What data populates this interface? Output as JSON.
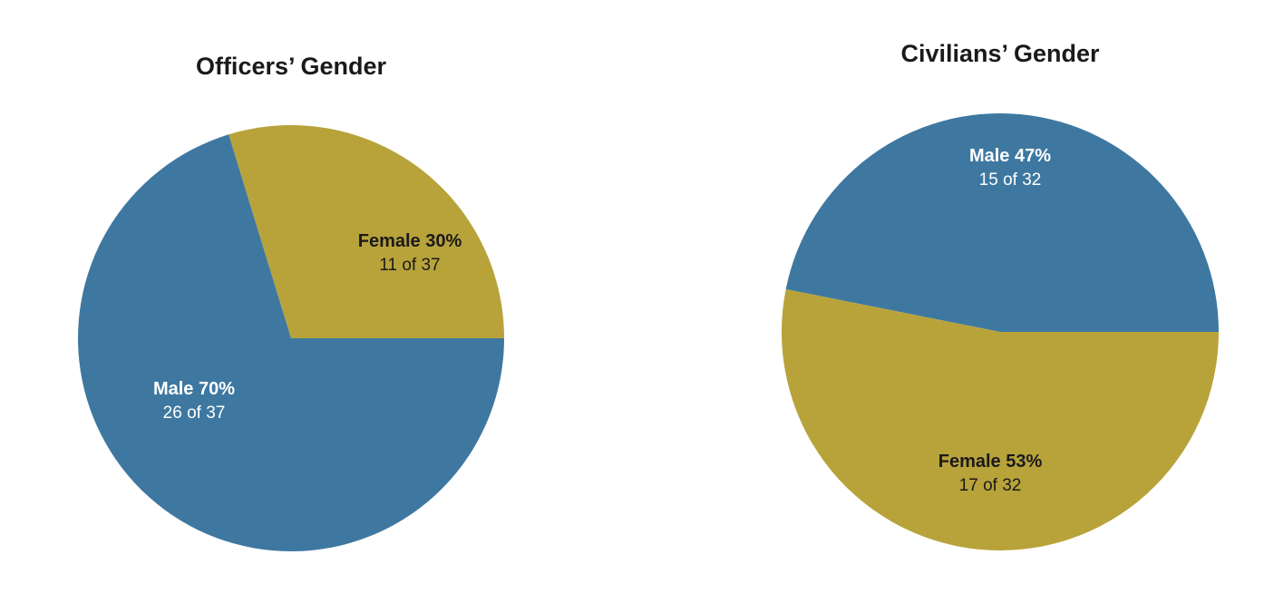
{
  "chart_data": [
    {
      "type": "pie",
      "title": "Officers’ Gender",
      "slices": [
        {
          "name": "Female",
          "value": 11,
          "percent_label": "Female 30%",
          "count_label": "11 of 37",
          "color": "#b8a33b",
          "text_color": "#1a1a1a"
        },
        {
          "name": "Male",
          "value": 26,
          "percent_label": "Male 70%",
          "count_label": "26 of 37",
          "color": "#3e78a0",
          "text_color": "#ffffff"
        }
      ],
      "total": 37
    },
    {
      "type": "pie",
      "title": "Civilians’ Gender",
      "slices": [
        {
          "name": "Male",
          "value": 15,
          "percent_label": "Male 47%",
          "count_label": "15 of 32",
          "color": "#3e78a0",
          "text_color": "#ffffff"
        },
        {
          "name": "Female",
          "value": 17,
          "percent_label": "Female 53%",
          "count_label": "17 of 32",
          "color": "#b8a33b",
          "text_color": "#1a1a1a"
        }
      ],
      "total": 32
    }
  ]
}
